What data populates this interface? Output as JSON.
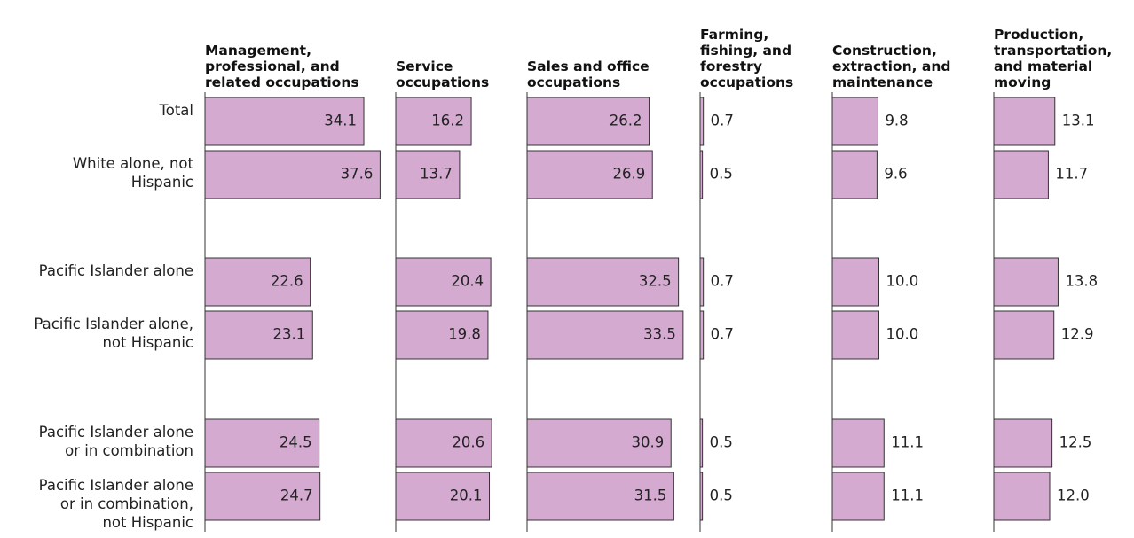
{
  "chart_data": {
    "type": "bar",
    "orientation": "horizontal",
    "color": "#d4aad1",
    "categories": [
      "Total",
      "White alone, not\nHispanic",
      "Pacific Islander alone",
      "Pacific Islander alone,\nnot Hispanic",
      "Pacific Islander alone\nor in combination",
      "Pacific Islander alone\nor in combination,\nnot Hispanic"
    ],
    "series": [
      {
        "name": "Management,\nprofessional, and\nrelated occupations",
        "label_position": "inside",
        "values": [
          34.1,
          37.6,
          22.6,
          23.1,
          24.5,
          24.7
        ]
      },
      {
        "name": "Service\noccupations",
        "label_position": "inside",
        "values": [
          16.2,
          13.7,
          20.4,
          19.8,
          20.6,
          20.1
        ]
      },
      {
        "name": "Sales and office\noccupations",
        "label_position": "inside",
        "values": [
          26.2,
          26.9,
          32.5,
          33.5,
          30.9,
          31.5
        ]
      },
      {
        "name": "Farming,\nfishing, and\nforestry\noccupations",
        "label_position": "outside",
        "values": [
          0.7,
          0.5,
          0.7,
          0.7,
          0.5,
          0.5
        ]
      },
      {
        "name": "Construction,\nextraction, and\nmaintenance",
        "label_position": "outside",
        "values": [
          9.8,
          9.6,
          10.0,
          10.0,
          11.1,
          11.1
        ],
        "value_labels": [
          "9.8",
          "9.6",
          "10.0",
          "10.0",
          "11.1",
          "11.1"
        ]
      },
      {
        "name": "Production,\ntransportation,\nand material\nmoving",
        "label_position": "outside",
        "values": [
          13.1,
          11.7,
          13.8,
          12.9,
          12.5,
          12.0
        ],
        "value_labels": [
          "13.1",
          "11.7",
          "13.8",
          "12.9",
          "12.5",
          "12.0"
        ]
      }
    ]
  }
}
